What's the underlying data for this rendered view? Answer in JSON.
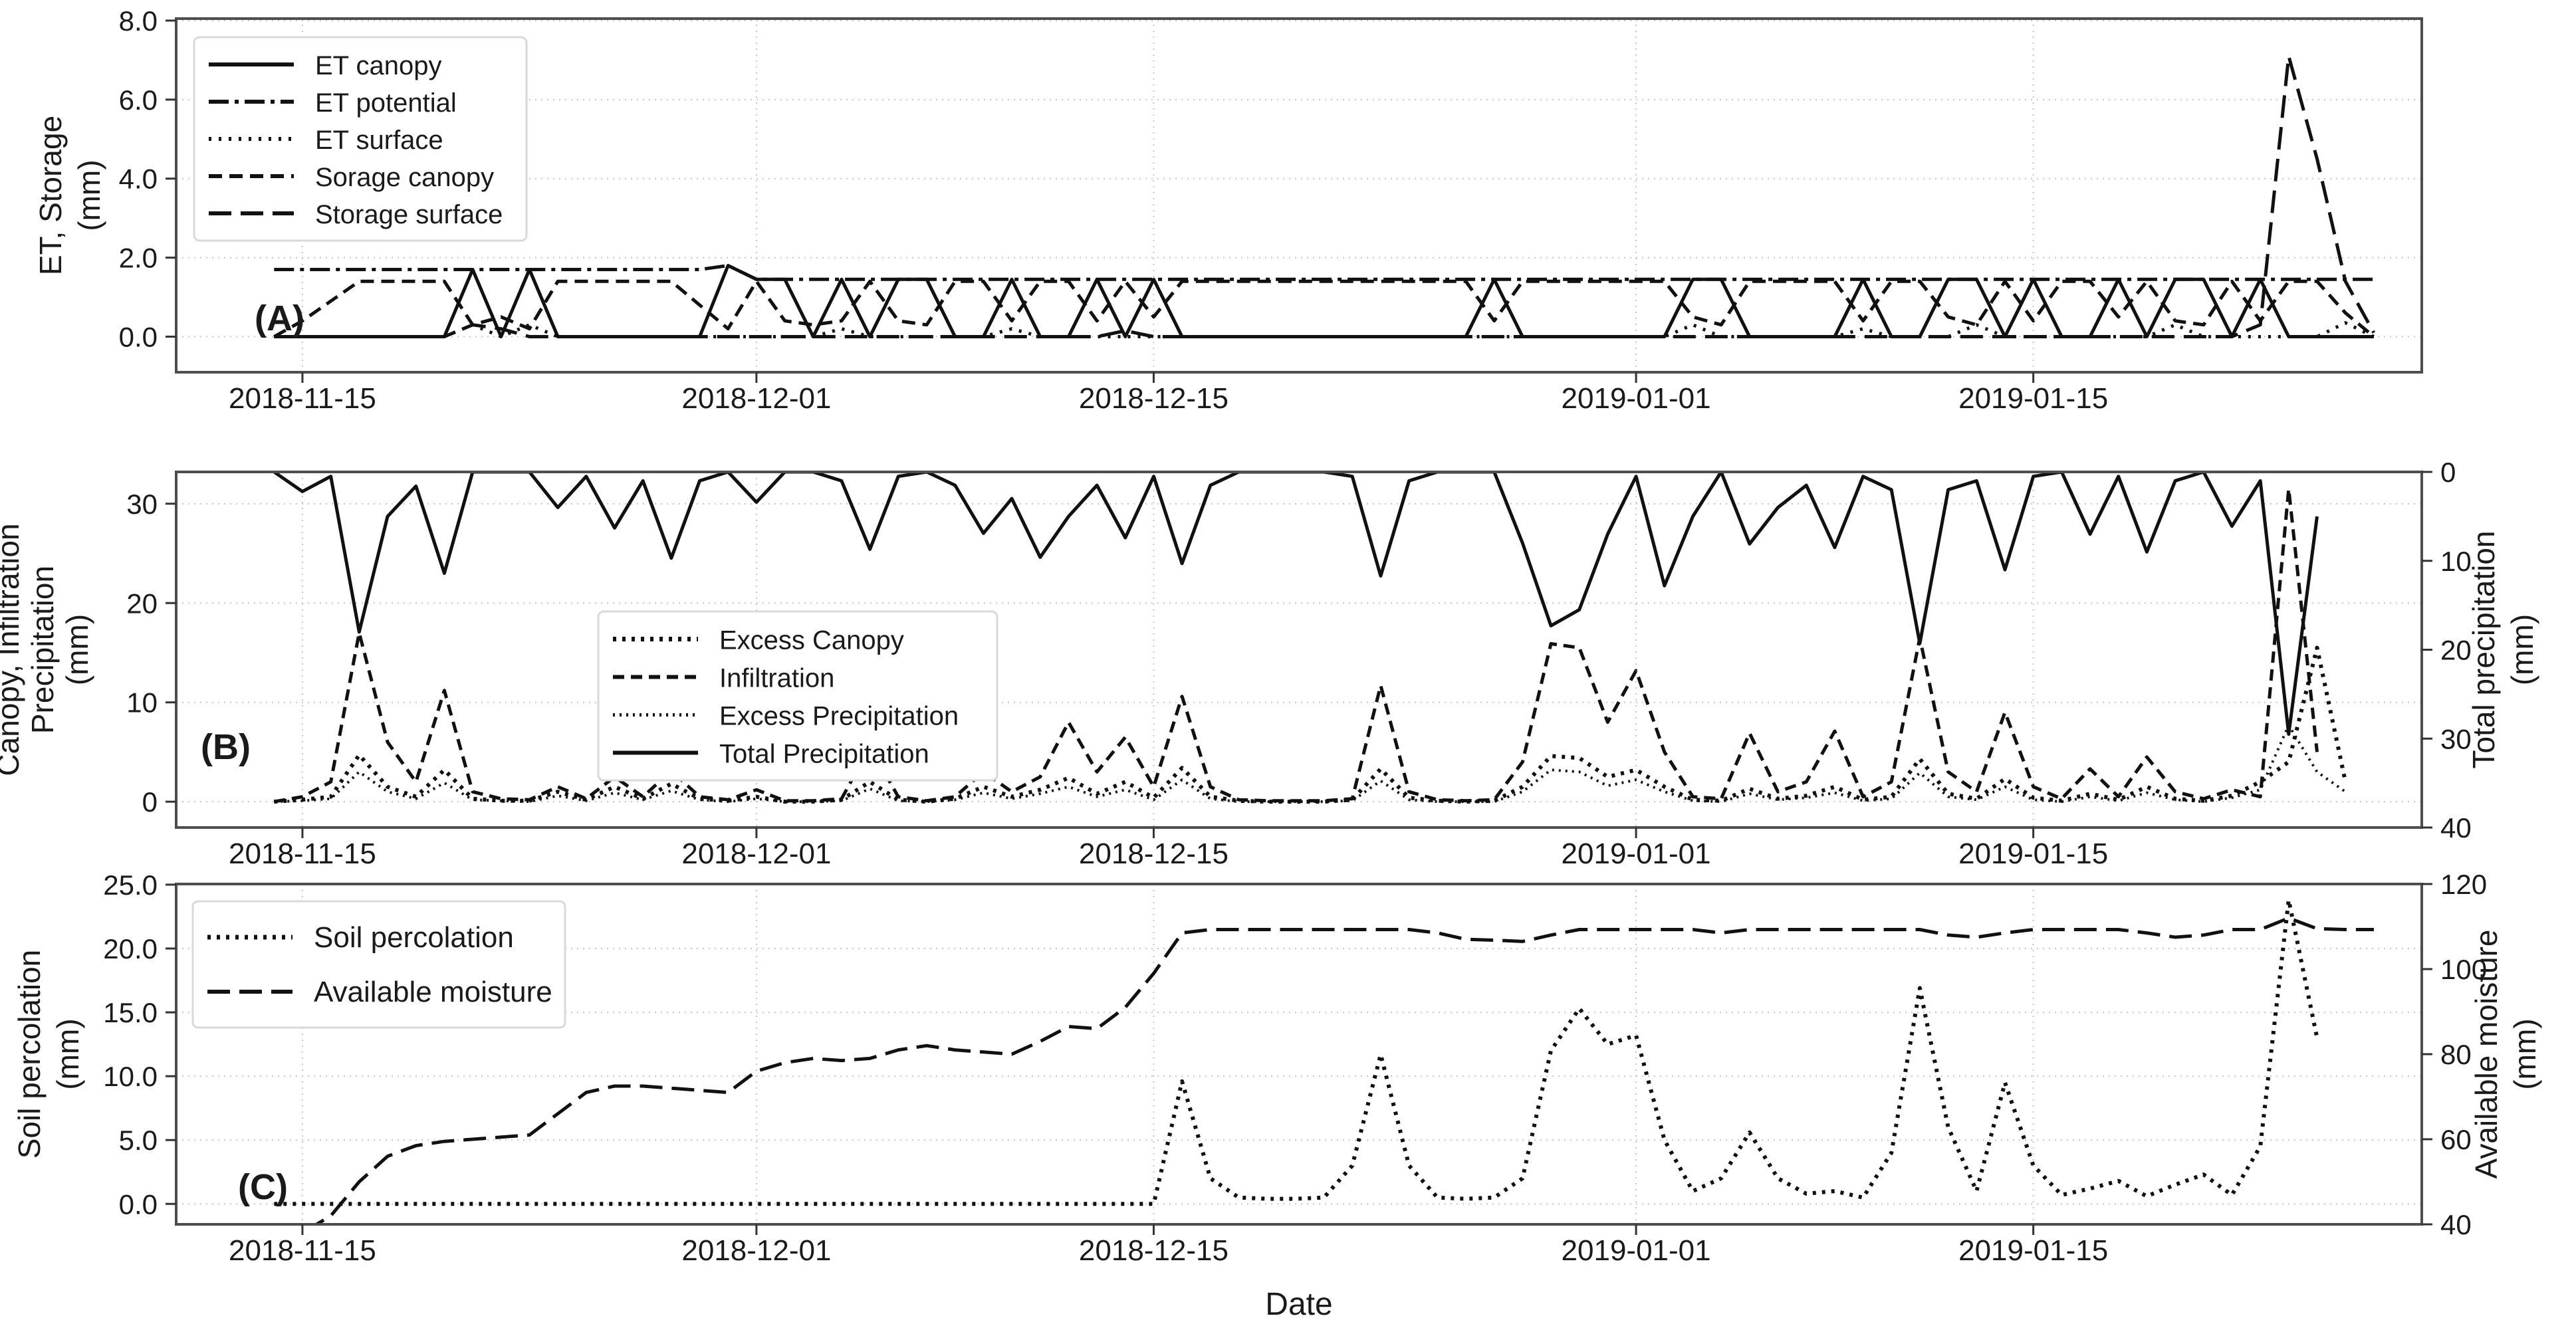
{
  "figure": {
    "xlabel": "Date",
    "background": "#ffffff",
    "text_color": "#1a1a1a",
    "grid_color": "#c6c6c6",
    "axis_color": "#4d4d4d",
    "line_color": "#111111",
    "legend_border_color": "#d9d9d9",
    "legend_bg_color": "#ffffff"
  },
  "x_ticks": [
    {
      "index": 1,
      "label": "2018-11-15"
    },
    {
      "index": 17,
      "label": "2018-12-01"
    },
    {
      "index": 31,
      "label": "2018-12-15"
    },
    {
      "index": 48,
      "label": "2019-01-01"
    },
    {
      "index": 62,
      "label": "2019-01-15"
    }
  ],
  "chart_data": [
    {
      "id": "a",
      "type": "line",
      "panel_label": "(A)",
      "x_range_days": [
        "2018-11-14",
        "2019-01-27"
      ],
      "y_left": {
        "label_lines": [
          "ET, Storage",
          "(mm)"
        ],
        "ticks": [
          0,
          2,
          4,
          6,
          8
        ],
        "decimals": 1,
        "domain": [
          -0.9,
          8.05
        ]
      },
      "y_right": null,
      "grid": true,
      "legend_position": "upper-left",
      "series": [
        {
          "name": "ET canopy",
          "axis": "left",
          "style": "solid",
          "values": [
            0,
            0,
            0,
            0,
            0,
            0,
            0,
            1.7,
            0,
            1.7,
            0,
            0,
            0,
            0,
            0,
            0,
            1.8,
            1.45,
            1.45,
            0,
            1.45,
            0,
            1.45,
            1.45,
            0,
            0,
            1.45,
            0,
            0,
            1.45,
            0,
            1.45,
            0,
            0,
            0,
            0,
            0,
            0,
            0,
            0,
            0,
            0,
            0,
            1.45,
            0,
            0,
            0,
            0,
            0,
            0,
            1.45,
            1.45,
            0,
            0,
            0,
            0,
            1.45,
            0,
            0,
            1.45,
            1.45,
            0,
            1.45,
            0,
            0,
            1.45,
            0,
            1.45,
            1.45,
            0,
            1.45,
            0,
            0,
            0,
            0
          ]
        },
        {
          "name": "ET potential",
          "axis": "left",
          "style": "dash_dot",
          "values": [
            1.7,
            1.7,
            1.7,
            1.7,
            1.7,
            1.7,
            1.7,
            1.7,
            1.7,
            1.7,
            1.7,
            1.7,
            1.7,
            1.7,
            1.7,
            1.7,
            1.8,
            1.45,
            1.45,
            1.45,
            1.45,
            1.45,
            1.45,
            1.45,
            1.45,
            1.45,
            1.45,
            1.45,
            1.45,
            1.45,
            1.45,
            1.45,
            1.45,
            1.45,
            1.45,
            1.45,
            1.45,
            1.45,
            1.45,
            1.45,
            1.45,
            1.45,
            1.45,
            1.45,
            1.45,
            1.45,
            1.45,
            1.45,
            1.45,
            1.45,
            1.45,
            1.45,
            1.45,
            1.45,
            1.45,
            1.45,
            1.45,
            1.45,
            1.45,
            1.45,
            1.45,
            1.45,
            1.45,
            1.45,
            1.45,
            1.45,
            1.45,
            1.45,
            1.45,
            1.45,
            1.45,
            1.45,
            1.45,
            1.45,
            1.45
          ]
        },
        {
          "name": "ET surface",
          "axis": "left",
          "style": "dotted_sparse",
          "values": [
            0,
            0,
            0,
            0,
            0,
            0,
            0,
            0.3,
            0,
            0.3,
            0,
            0,
            0,
            0,
            0,
            0,
            0,
            0,
            0,
            0,
            0.2,
            0,
            0,
            0,
            0,
            0,
            0.2,
            0,
            0,
            0,
            0,
            0,
            0,
            0,
            0,
            0,
            0,
            0,
            0,
            0,
            0,
            0,
            0,
            0,
            0,
            0,
            0,
            0,
            0,
            0,
            0.3,
            0,
            0,
            0,
            0,
            0,
            0.2,
            0,
            0,
            0,
            0.3,
            0,
            0,
            0,
            0,
            0,
            0,
            0.3,
            0,
            0,
            0,
            0,
            0,
            0.35,
            0
          ]
        },
        {
          "name": "Sorage canopy",
          "axis": "left",
          "style": "dashed",
          "values": [
            0,
            0.4,
            0.9,
            1.4,
            1.4,
            1.4,
            1.4,
            0.3,
            0.5,
            0.2,
            1.4,
            1.4,
            1.4,
            1.4,
            1.4,
            0.8,
            0.2,
            1.4,
            0.4,
            0.3,
            0.4,
            1.4,
            0.4,
            0.3,
            1.4,
            1.4,
            0.4,
            1.4,
            1.4,
            0.4,
            1.4,
            0.5,
            1.4,
            1.4,
            1.4,
            1.4,
            1.4,
            1.4,
            1.4,
            1.4,
            1.4,
            1.4,
            1.4,
            0.4,
            1.4,
            1.4,
            1.4,
            1.4,
            1.4,
            1.4,
            0.5,
            0.3,
            1.4,
            1.4,
            1.4,
            1.4,
            0.4,
            1.4,
            1.4,
            0.5,
            0.3,
            1.4,
            0.4,
            1.4,
            1.4,
            0.5,
            1.4,
            0.4,
            0.3,
            1.4,
            0.4,
            1.4,
            1.4,
            0.6,
            0
          ]
        },
        {
          "name": "Storage surface",
          "axis": "left",
          "style": "long_dash",
          "values": [
            0,
            0,
            0,
            0,
            0,
            0,
            0,
            0.3,
            0.2,
            0,
            0,
            0,
            0,
            0,
            0,
            0,
            0,
            0,
            0,
            0,
            0,
            0,
            0,
            0,
            0,
            0,
            0,
            0,
            0,
            0,
            0.15,
            0,
            0,
            0,
            0,
            0,
            0,
            0,
            0,
            0,
            0,
            0,
            0,
            0,
            0,
            0,
            0,
            0,
            0,
            0,
            0,
            0,
            0,
            0,
            0,
            0,
            0,
            0,
            0,
            0,
            0,
            0,
            0,
            0,
            0,
            0,
            0,
            0,
            0,
            0,
            0.3,
            7.1,
            4.5,
            1.4,
            0.1
          ]
        }
      ]
    },
    {
      "id": "b",
      "type": "line",
      "panel_label": "(B)",
      "x_range_days": [
        "2018-11-14",
        "2019-01-27"
      ],
      "y_left": {
        "label_lines": [
          "Canopy, Infiltration",
          "Precipitation",
          "(mm)"
        ],
        "ticks": [
          0,
          10,
          20,
          30
        ],
        "decimals": 0,
        "domain": [
          -2.6,
          33.2
        ]
      },
      "y_right": {
        "label_lines": [
          "Total precipitation",
          "(mm)"
        ],
        "ticks": [
          0,
          10,
          20,
          30,
          40
        ],
        "decimals": 0,
        "domain": [
          0,
          40
        ],
        "inverted": true
      },
      "grid": true,
      "legend_position": "center-left",
      "series": [
        {
          "name": "Excess Canopy",
          "axis": "left",
          "style": "dotted_med",
          "values": [
            0,
            0.2,
            0.5,
            4.7,
            1.5,
            0.5,
            3.2,
            0.3,
            0.1,
            0.1,
            1.0,
            0.2,
            1.5,
            0.3,
            1.8,
            0.3,
            0.1,
            0.5,
            0,
            0,
            0.2,
            2.0,
            0.2,
            0,
            0.3,
            1.5,
            0.5,
            1.2,
            2.4,
            0.8,
            2.0,
            0.4,
            3.4,
            0.5,
            0.1,
            0,
            0,
            0,
            0.2,
            3.3,
            0.4,
            0.1,
            0,
            0.1,
            1.5,
            4.6,
            4.4,
            2.5,
            3.2,
            1.5,
            0.2,
            0.1,
            1.3,
            0.3,
            0.6,
            1.5,
            0.2,
            0.5,
            4.3,
            0.8,
            0.3,
            2.3,
            0.4,
            0.1,
            0.8,
            0.2,
            1.5,
            0.3,
            0.1,
            0.6,
            2.0,
            4.0,
            15.5,
            2.0,
            null
          ]
        },
        {
          "name": "Infiltration",
          "axis": "left",
          "style": "dashed_med",
          "values": [
            0,
            0.5,
            2,
            17,
            6,
            2,
            11.2,
            1,
            0.3,
            0.2,
            1.5,
            0.3,
            2.5,
            0.5,
            3.1,
            0.5,
            0.2,
            1.2,
            0.1,
            0.1,
            0.3,
            5.5,
            0.5,
            0.1,
            0.5,
            3.0,
            1.0,
            2.5,
            8.0,
            3.0,
            6.5,
            1.5,
            10.6,
            1.5,
            0.2,
            0.1,
            0.1,
            0.1,
            0.3,
            11.7,
            1.0,
            0.2,
            0.1,
            0.2,
            4.0,
            15.9,
            15.5,
            8.0,
            13.2,
            5.0,
            0.5,
            0.3,
            6.9,
            1.0,
            2.0,
            7.1,
            0.5,
            2.0,
            16.5,
            3.0,
            1.0,
            9.0,
            1.5,
            0.3,
            3.3,
            0.5,
            4.5,
            1.0,
            0.3,
            1.2,
            0.5,
            31.5,
            5.0,
            null,
            null
          ]
        },
        {
          "name": "Excess Precipitation",
          "axis": "left",
          "style": "dotted_fine",
          "values": [
            0,
            0.1,
            0.3,
            3.0,
            1.0,
            0.3,
            1.9,
            0.2,
            0.1,
            0,
            0.6,
            0.1,
            0.9,
            0.2,
            1.1,
            0.2,
            0,
            0.3,
            0,
            0,
            0.1,
            1.3,
            0.1,
            0,
            0.2,
            0.9,
            0.3,
            0.8,
            1.5,
            0.5,
            1.2,
            0.2,
            2.2,
            0.3,
            0,
            0,
            0,
            0,
            0.1,
            2.1,
            0.2,
            0,
            0,
            0,
            1.0,
            3.2,
            3.0,
            1.6,
            2.2,
            1.0,
            0.1,
            0,
            0.8,
            0.2,
            0.4,
            0.9,
            0.1,
            0.3,
            2.9,
            0.5,
            0.2,
            1.5,
            0.2,
            0,
            0.5,
            0.1,
            0.9,
            0.2,
            0,
            0.4,
            1.2,
            7.7,
            3.0,
            1.0,
            null
          ]
        },
        {
          "name": "Total Precipitation",
          "axis": "right",
          "style": "solid",
          "values": [
            0,
            2.2,
            0.5,
            18,
            5,
            1.6,
            11.4,
            0,
            0,
            0,
            4,
            0.5,
            6.3,
            1,
            9.7,
            1,
            0,
            3.4,
            0,
            0,
            1,
            8.7,
            0.5,
            0,
            1.5,
            6.9,
            3,
            9.6,
            5,
            1.5,
            7.4,
            0.5,
            10.3,
            1.5,
            0,
            0,
            0,
            0,
            0.5,
            11.7,
            1,
            0,
            0,
            0,
            8,
            17.3,
            15.5,
            7,
            0.5,
            12.8,
            5,
            0,
            8.1,
            4,
            1.5,
            8.5,
            0.5,
            2,
            19.3,
            2,
            1,
            11,
            0.5,
            0,
            7,
            0.5,
            9,
            1,
            0,
            6.1,
            1,
            29.5,
            5,
            null,
            null
          ]
        }
      ]
    },
    {
      "id": "c",
      "type": "line",
      "panel_label": "(C)",
      "x_range_days": [
        "2018-11-14",
        "2019-01-27"
      ],
      "y_left": {
        "label_lines": [
          "Soil percolation",
          "(mm)"
        ],
        "ticks": [
          0,
          5,
          10,
          15,
          20,
          25
        ],
        "decimals": 1,
        "domain": [
          -1.6,
          25.05
        ]
      },
      "y_right": {
        "label_lines": [
          "Available moisture",
          "(mm)"
        ],
        "ticks": [
          40,
          60,
          80,
          100,
          120
        ],
        "decimals": 0,
        "domain": [
          40,
          120
        ],
        "inverted": false
      },
      "grid": true,
      "legend_position": "upper-left",
      "series": [
        {
          "name": "Soil percolation",
          "axis": "left",
          "style": "dotted_med",
          "values": [
            0,
            0,
            0,
            0,
            0,
            0,
            0,
            0,
            0,
            0,
            0,
            0,
            0,
            0,
            0,
            0,
            0,
            0,
            0,
            0,
            0,
            0,
            0,
            0,
            0,
            0,
            0,
            0,
            0,
            0,
            0,
            0,
            9.6,
            2.0,
            0.5,
            0.4,
            0.4,
            0.5,
            3.0,
            11.7,
            3.0,
            0.5,
            0.4,
            0.5,
            2.0,
            12.0,
            15.3,
            12.5,
            13.2,
            5.0,
            1.0,
            2.0,
            5.6,
            2.0,
            0.8,
            1.0,
            0.5,
            4.0,
            16.9,
            6.0,
            1.0,
            9.5,
            3.0,
            0.7,
            1.2,
            1.8,
            0.6,
            1.5,
            2.3,
            0.7,
            4.5,
            23.8,
            13.0,
            null,
            null
          ]
        },
        {
          "name": "Available moisture",
          "axis": "right",
          "style": "long_dash",
          "values": [
            36,
            38,
            42,
            50,
            56,
            58.5,
            59.5,
            60,
            60.5,
            61,
            66,
            71,
            72.5,
            72.5,
            72,
            71.5,
            71,
            76,
            78,
            79,
            78.5,
            79,
            81,
            82,
            81,
            80.5,
            80,
            83,
            86.5,
            86,
            91,
            99,
            108.5,
            109.3,
            109.3,
            109.3,
            109.3,
            109.3,
            109.3,
            109.3,
            109.3,
            108.5,
            107,
            106.8,
            106.5,
            108,
            109.3,
            109.3,
            109.3,
            109.3,
            109.3,
            108.5,
            109.3,
            109.3,
            109.3,
            109.3,
            109.3,
            109.3,
            109.3,
            108,
            107.5,
            108.5,
            109.3,
            109.3,
            109.3,
            109.3,
            108.5,
            107.5,
            108,
            109.3,
            109.3,
            112,
            109.5,
            109.3,
            109.3
          ]
        }
      ]
    }
  ]
}
